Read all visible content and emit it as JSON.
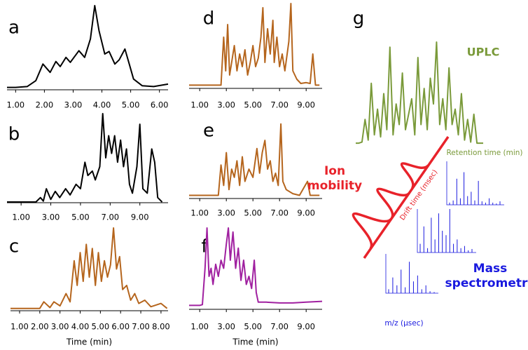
{
  "chart_data": [
    {
      "type": "line",
      "label": "a",
      "color": "#000000",
      "xlim": [
        0.7,
        6.3
      ],
      "ylim": [
        0,
        100
      ],
      "xticks": [
        {
          "value": 1,
          "label": "1.00"
        },
        {
          "value": 2,
          "label": "2.00"
        },
        {
          "value": 3,
          "label": "3.00"
        },
        {
          "value": 4,
          "label": "4.00"
        },
        {
          "value": 5,
          "label": "5.00"
        },
        {
          "value": 6,
          "label": "6.00"
        }
      ],
      "x": [
        0.7,
        1.0,
        1.4,
        1.7,
        1.95,
        2.2,
        2.4,
        2.55,
        2.75,
        2.9,
        3.2,
        3.4,
        3.6,
        3.75,
        3.9,
        4.1,
        4.25,
        4.45,
        4.6,
        4.8,
        4.95,
        5.1,
        5.4,
        5.8,
        6.3
      ],
      "values": [
        2,
        2,
        3,
        10,
        30,
        20,
        33,
        27,
        38,
        32,
        46,
        38,
        60,
        100,
        70,
        42,
        45,
        30,
        35,
        48,
        30,
        12,
        4,
        3,
        6
      ]
    },
    {
      "type": "line",
      "label": "b",
      "color": "#000000",
      "xlim": [
        0.05,
        10.9
      ],
      "ylim": [
        0,
        100
      ],
      "xticks": [
        {
          "value": 1,
          "label": "1.00"
        },
        {
          "value": 3,
          "label": "3.00"
        },
        {
          "value": 5,
          "label": "5.00"
        },
        {
          "value": 7,
          "label": "7.00"
        },
        {
          "value": 9,
          "label": "9.00"
        }
      ],
      "x": [
        0.05,
        2.0,
        2.3,
        2.5,
        2.7,
        3.0,
        3.3,
        3.6,
        4.0,
        4.3,
        4.7,
        5.0,
        5.3,
        5.5,
        5.8,
        6.0,
        6.3,
        6.5,
        6.7,
        6.9,
        7.1,
        7.3,
        7.5,
        7.7,
        7.9,
        8.1,
        8.3,
        8.5,
        8.8,
        9.0,
        9.2,
        9.5,
        9.8,
        10.0,
        10.2,
        10.5
      ],
      "values": [
        0,
        0,
        5,
        1,
        15,
        3,
        12,
        5,
        15,
        8,
        20,
        15,
        45,
        30,
        35,
        25,
        40,
        100,
        50,
        75,
        55,
        75,
        45,
        70,
        40,
        60,
        20,
        10,
        40,
        88,
        15,
        10,
        60,
        45,
        5,
        0
      ]
    },
    {
      "type": "line",
      "label": "c",
      "color": "#b5651d",
      "xlabel": "Time (min)",
      "xlim": [
        0.55,
        8.35
      ],
      "ylim": [
        0,
        100
      ],
      "xticks": [
        {
          "value": 1,
          "label": "1.00"
        },
        {
          "value": 2,
          "label": "2.00"
        },
        {
          "value": 3,
          "label": "3.00"
        },
        {
          "value": 4,
          "label": "4.00"
        },
        {
          "value": 5,
          "label": "5.00"
        },
        {
          "value": 6,
          "label": "6.00"
        },
        {
          "value": 7,
          "label": "7.00"
        },
        {
          "value": 8,
          "label": "8.00"
        }
      ],
      "x": [
        0.55,
        2.0,
        2.2,
        2.5,
        2.7,
        3.0,
        3.3,
        3.5,
        3.7,
        3.85,
        4.0,
        4.15,
        4.3,
        4.45,
        4.6,
        4.75,
        4.9,
        5.05,
        5.2,
        5.35,
        5.5,
        5.65,
        5.8,
        5.95,
        6.1,
        6.3,
        6.5,
        6.7,
        6.9,
        7.2,
        7.5,
        8.0,
        8.3
      ],
      "values": [
        2,
        2,
        10,
        3,
        10,
        5,
        20,
        10,
        60,
        30,
        70,
        35,
        80,
        40,
        75,
        30,
        70,
        35,
        60,
        40,
        55,
        100,
        50,
        65,
        25,
        30,
        12,
        20,
        8,
        12,
        4,
        8,
        2
      ]
    },
    {
      "type": "line",
      "label": "d",
      "color": "#b5651d",
      "xlim": [
        0.2,
        10.2
      ],
      "ylim": [
        0,
        100
      ],
      "xticks": [
        {
          "value": 1,
          "label": "1.00"
        },
        {
          "value": 3,
          "label": "3.00"
        },
        {
          "value": 5,
          "label": "5.00"
        },
        {
          "value": 7,
          "label": "7.00"
        },
        {
          "value": 9,
          "label": "9.00"
        }
      ],
      "x": [
        0.2,
        2.6,
        2.8,
        2.95,
        3.1,
        3.25,
        3.4,
        3.6,
        3.8,
        4.0,
        4.2,
        4.4,
        4.6,
        4.8,
        5.0,
        5.2,
        5.4,
        5.6,
        5.75,
        5.9,
        6.1,
        6.3,
        6.5,
        6.6,
        6.8,
        7.0,
        7.2,
        7.4,
        7.7,
        7.85,
        8.0,
        8.3,
        8.6,
        9.0,
        9.3,
        9.5,
        9.7,
        10.0
      ],
      "values": [
        3,
        3,
        60,
        20,
        75,
        15,
        30,
        50,
        20,
        40,
        25,
        45,
        15,
        30,
        50,
        25,
        35,
        60,
        95,
        30,
        70,
        40,
        80,
        30,
        60,
        25,
        40,
        20,
        55,
        100,
        20,
        10,
        5,
        6,
        5,
        40,
        3,
        3
      ]
    },
    {
      "type": "line",
      "label": "e",
      "color": "#b5651d",
      "xlim": [
        0.2,
        10.2
      ],
      "ylim": [
        0,
        100
      ],
      "xticks": [
        {
          "value": 1,
          "label": "1.00"
        },
        {
          "value": 3,
          "label": "3.00"
        },
        {
          "value": 5,
          "label": "5.00"
        },
        {
          "value": 7,
          "label": "7.00"
        },
        {
          "value": 9,
          "label": "9.00"
        }
      ],
      "x": [
        0.2,
        2.4,
        2.6,
        2.8,
        3.0,
        3.2,
        3.4,
        3.6,
        3.8,
        4.0,
        4.2,
        4.4,
        4.7,
        5.0,
        5.3,
        5.5,
        5.7,
        5.9,
        6.1,
        6.3,
        6.5,
        6.7,
        6.9,
        7.1,
        7.25,
        7.5,
        8.0,
        8.5,
        9.1,
        9.3,
        10.0
      ],
      "values": [
        3,
        3,
        40,
        15,
        55,
        10,
        35,
        25,
        45,
        15,
        50,
        20,
        35,
        25,
        60,
        30,
        55,
        70,
        35,
        45,
        20,
        30,
        15,
        90,
        20,
        10,
        5,
        3,
        20,
        3,
        3
      ]
    },
    {
      "type": "line",
      "label": "f",
      "color": "#a020a0",
      "xlabel": "Time (min)",
      "xlim": [
        0.2,
        10.2
      ],
      "ylim": [
        0,
        100
      ],
      "xticks": [
        {
          "value": 1,
          "label": "1.00"
        },
        {
          "value": 3,
          "label": "3.00"
        },
        {
          "value": 5,
          "label": "5.00"
        },
        {
          "value": 7,
          "label": "7.00"
        },
        {
          "value": 9,
          "label": "9.00"
        }
      ],
      "x": [
        0.2,
        1.0,
        1.2,
        1.4,
        1.55,
        1.7,
        1.85,
        2.0,
        2.2,
        2.4,
        2.6,
        2.8,
        3.0,
        3.15,
        3.3,
        3.5,
        3.7,
        3.9,
        4.1,
        4.3,
        4.5,
        4.7,
        4.9,
        5.1,
        5.25,
        5.4,
        6.0,
        7.0,
        8.0,
        9.0,
        10.2
      ],
      "values": [
        4,
        4,
        5,
        50,
        100,
        40,
        50,
        30,
        55,
        40,
        60,
        50,
        80,
        100,
        60,
        95,
        50,
        75,
        35,
        60,
        30,
        40,
        25,
        60,
        20,
        8,
        8,
        7,
        7,
        8,
        9
      ]
    },
    {
      "type": "diagram",
      "label": "g",
      "uplc": {
        "name": "UPLC",
        "color": "#7a9a3a",
        "axis_label": "Retention time (min)",
        "values": [
          2,
          2,
          3,
          25,
          5,
          60,
          10,
          35,
          8,
          50,
          15,
          95,
          10,
          40,
          20,
          70,
          15,
          30,
          45,
          10,
          85,
          20,
          55,
          15,
          65,
          40,
          100,
          20,
          45,
          15,
          75,
          20,
          35,
          10,
          50,
          5,
          25,
          3,
          30,
          2,
          2,
          2
        ]
      },
      "ion_mobility": {
        "name": [
          "Ion",
          "mobility"
        ],
        "color": "#e8222a",
        "axis_label": "Drift time (msec)"
      },
      "mass_spec": {
        "name": [
          "Mass",
          "spectrometry"
        ],
        "color": "#1a1adf",
        "axis_label": "m/z (µsec)",
        "spectra": [
          [
            5,
            10,
            60,
            15,
            75,
            20,
            30,
            10,
            55,
            8,
            5,
            15,
            5,
            3,
            8
          ],
          [
            20,
            60,
            10,
            80,
            30,
            90,
            50,
            40,
            100,
            20,
            30,
            10,
            15,
            5,
            8
          ],
          [
            10,
            40,
            20,
            60,
            15,
            80,
            30,
            45,
            10,
            20,
            5,
            3
          ]
        ]
      }
    }
  ]
}
